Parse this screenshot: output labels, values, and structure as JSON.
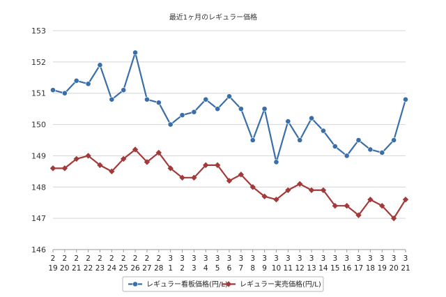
{
  "chart_data": {
    "type": "line",
    "title": "最近1ヶ月のレギュラー価格",
    "xlabel": "",
    "ylabel": "",
    "ylim": [
      146,
      153
    ],
    "yticks": [
      146,
      147,
      148,
      149,
      150,
      151,
      152,
      153
    ],
    "grid": true,
    "legend_position": "bottom",
    "categories": [
      {
        "month": "2",
        "day": "19"
      },
      {
        "month": "2",
        "day": "20"
      },
      {
        "month": "2",
        "day": "21"
      },
      {
        "month": "2",
        "day": "22"
      },
      {
        "month": "2",
        "day": "23"
      },
      {
        "month": "2",
        "day": "24"
      },
      {
        "month": "2",
        "day": "25"
      },
      {
        "month": "2",
        "day": "26"
      },
      {
        "month": "2",
        "day": "27"
      },
      {
        "month": "2",
        "day": "28"
      },
      {
        "month": "3",
        "day": "1"
      },
      {
        "month": "3",
        "day": "2"
      },
      {
        "month": "3",
        "day": "3"
      },
      {
        "month": "3",
        "day": "4"
      },
      {
        "month": "3",
        "day": "5"
      },
      {
        "month": "3",
        "day": "6"
      },
      {
        "month": "3",
        "day": "7"
      },
      {
        "month": "3",
        "day": "8"
      },
      {
        "month": "3",
        "day": "9"
      },
      {
        "month": "3",
        "day": "10"
      },
      {
        "month": "3",
        "day": "11"
      },
      {
        "month": "3",
        "day": "12"
      },
      {
        "month": "3",
        "day": "13"
      },
      {
        "month": "3",
        "day": "14"
      },
      {
        "month": "3",
        "day": "15"
      },
      {
        "month": "3",
        "day": "16"
      },
      {
        "month": "3",
        "day": "17"
      },
      {
        "month": "3",
        "day": "18"
      },
      {
        "month": "3",
        "day": "19"
      },
      {
        "month": "3",
        "day": "20"
      },
      {
        "month": "3",
        "day": "21"
      }
    ],
    "series": [
      {
        "name": "レギュラー看板価格(円/L)",
        "color": "#3a6ea8",
        "marker": "circle",
        "values": [
          151.1,
          151.0,
          151.4,
          151.3,
          151.9,
          150.8,
          151.1,
          152.3,
          150.8,
          150.7,
          150.0,
          150.3,
          150.4,
          150.8,
          150.5,
          150.9,
          150.5,
          149.5,
          150.5,
          148.8,
          150.1,
          149.5,
          150.2,
          149.8,
          149.3,
          149.0,
          149.5,
          149.2,
          149.1,
          149.5,
          150.8
        ]
      },
      {
        "name": "レギュラー実売価格(円/L)",
        "color": "#a33a3a",
        "marker": "diamond",
        "values": [
          148.6,
          148.6,
          148.9,
          149.0,
          148.7,
          148.5,
          148.9,
          149.2,
          148.8,
          149.1,
          148.6,
          148.3,
          148.3,
          148.7,
          148.7,
          148.2,
          148.4,
          148.0,
          147.7,
          147.6,
          147.9,
          148.1,
          147.9,
          147.9,
          147.4,
          147.4,
          147.1,
          147.6,
          147.4,
          147.0,
          147.6
        ]
      }
    ]
  }
}
